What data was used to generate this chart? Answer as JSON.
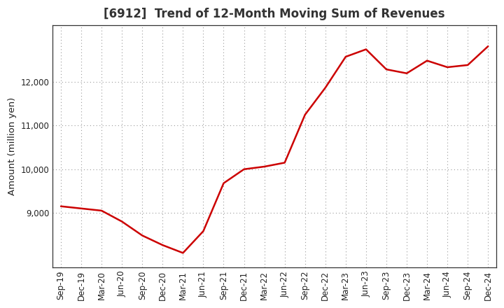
{
  "title": "[6912]  Trend of 12-Month Moving Sum of Revenues",
  "ylabel": "Amount (million yen)",
  "line_color": "#CC0000",
  "line_width": 1.8,
  "background_color": "#FFFFFF",
  "plot_bg_color": "#FFFFFF",
  "grid_color": "#999999",
  "x_labels": [
    "Sep-19",
    "Dec-19",
    "Mar-20",
    "Jun-20",
    "Sep-20",
    "Dec-20",
    "Mar-21",
    "Jun-21",
    "Sep-21",
    "Dec-21",
    "Mar-22",
    "Jun-22",
    "Sep-22",
    "Dec-22",
    "Mar-23",
    "Jun-23",
    "Sep-23",
    "Dec-23",
    "Mar-24",
    "Jun-24",
    "Sep-24",
    "Dec-24"
  ],
  "y_values": [
    9150,
    9100,
    9050,
    8800,
    8480,
    8260,
    8080,
    8580,
    9680,
    10000,
    10060,
    10150,
    11250,
    11870,
    12580,
    12750,
    12290,
    12200,
    12490,
    12340,
    12390,
    12820
  ],
  "yticks": [
    9000,
    10000,
    11000,
    12000
  ],
  "ylim": [
    7750,
    13300
  ],
  "title_fontsize": 12,
  "tick_fontsize": 8.5,
  "ylabel_fontsize": 9.5,
  "title_color": "#333333"
}
